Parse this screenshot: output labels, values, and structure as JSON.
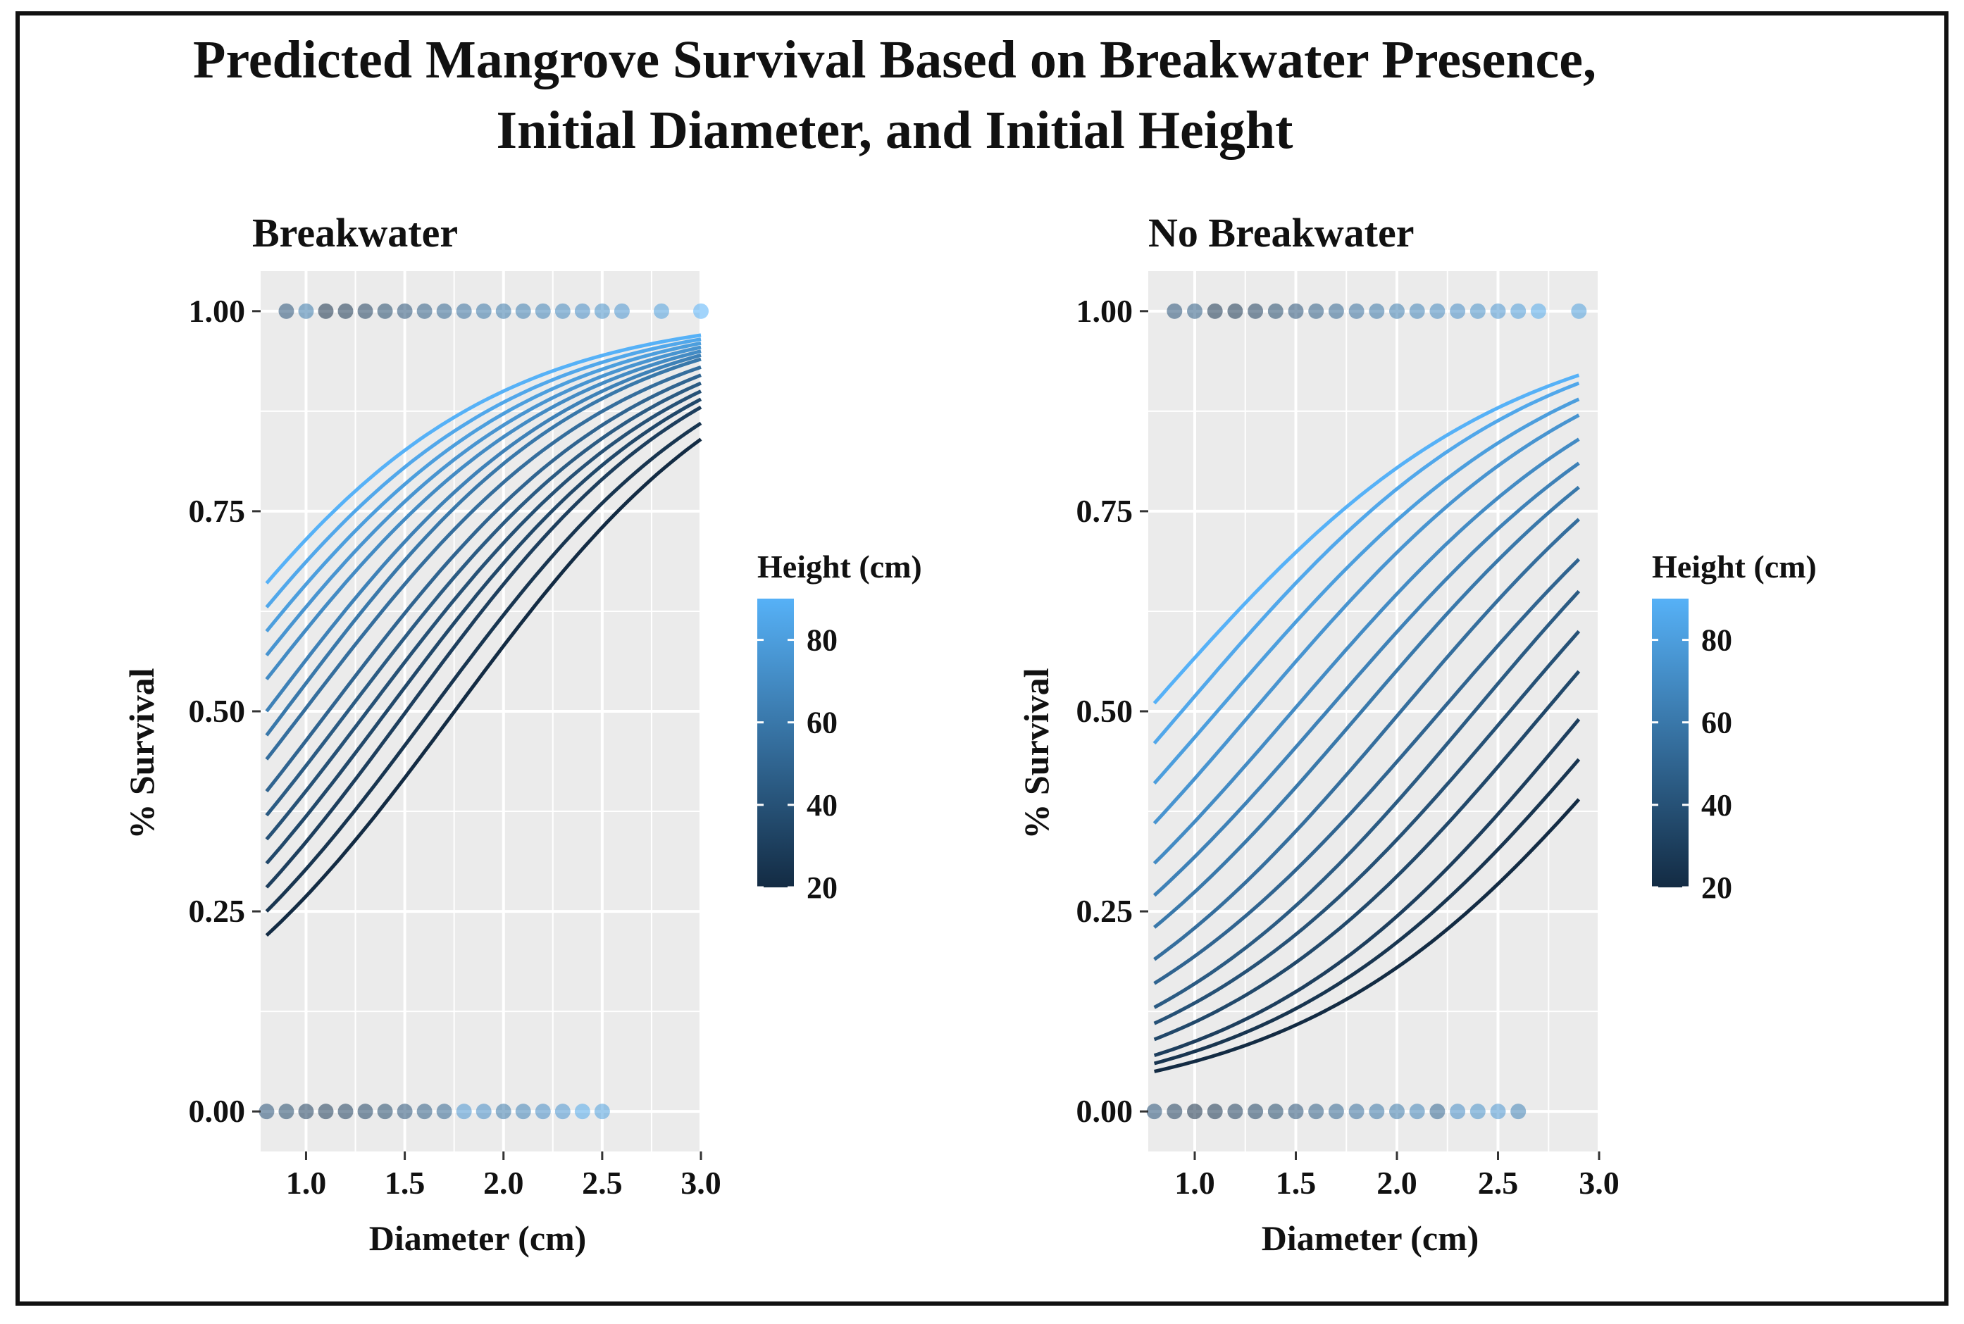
{
  "chart_data": {
    "title_line1": "Predicted Mangrove Survival Based on Breakwater Presence,",
    "title_line2": "Initial Diameter, and Initial Height",
    "colors": {
      "low": "#132B43",
      "high": "#56B1F7",
      "panel_bg": "#EBEBEB",
      "grid": "#ffffff"
    },
    "legend": {
      "title": "Height (cm)",
      "range": [
        20,
        90
      ],
      "ticks": [
        "80",
        "60",
        "40",
        "20"
      ]
    },
    "panels": [
      {
        "title": "Breakwater",
        "type": "line",
        "xlabel": "Diameter (cm)",
        "ylabel": "% Survival",
        "xlim": [
          0.77,
          3.0
        ],
        "ylim": [
          -0.05,
          1.05
        ],
        "xticks": [
          "1.0",
          "1.5",
          "2.0",
          "2.5",
          "3.0"
        ],
        "yticks": [
          "0.00",
          "0.25",
          "0.50",
          "0.75",
          "1.00"
        ],
        "x_range": [
          0.8,
          3.0
        ],
        "series": [
          {
            "height": 20,
            "y_start": 0.22,
            "y_end": 0.84
          },
          {
            "height": 25,
            "y_start": 0.25,
            "y_end": 0.86
          },
          {
            "height": 30,
            "y_start": 0.28,
            "y_end": 0.88
          },
          {
            "height": 35,
            "y_start": 0.31,
            "y_end": 0.89
          },
          {
            "height": 40,
            "y_start": 0.34,
            "y_end": 0.9
          },
          {
            "height": 45,
            "y_start": 0.37,
            "y_end": 0.91
          },
          {
            "height": 50,
            "y_start": 0.4,
            "y_end": 0.92
          },
          {
            "height": 55,
            "y_start": 0.44,
            "y_end": 0.93
          },
          {
            "height": 60,
            "y_start": 0.47,
            "y_end": 0.94
          },
          {
            "height": 65,
            "y_start": 0.5,
            "y_end": 0.945
          },
          {
            "height": 70,
            "y_start": 0.54,
            "y_end": 0.95
          },
          {
            "height": 75,
            "y_start": 0.57,
            "y_end": 0.955
          },
          {
            "height": 80,
            "y_start": 0.6,
            "y_end": 0.96
          },
          {
            "height": 85,
            "y_start": 0.63,
            "y_end": 0.965
          },
          {
            "height": 90,
            "y_start": 0.66,
            "y_end": 0.97
          }
        ],
        "points_top": [
          {
            "x": 0.9,
            "h": 40
          },
          {
            "x": 1.0,
            "h": 60
          },
          {
            "x": 1.1,
            "h": 22
          },
          {
            "x": 1.2,
            "h": 25
          },
          {
            "x": 1.3,
            "h": 30
          },
          {
            "x": 1.4,
            "h": 35
          },
          {
            "x": 1.5,
            "h": 40
          },
          {
            "x": 1.6,
            "h": 45
          },
          {
            "x": 1.7,
            "h": 50
          },
          {
            "x": 1.8,
            "h": 55
          },
          {
            "x": 1.9,
            "h": 58
          },
          {
            "x": 2.0,
            "h": 60
          },
          {
            "x": 2.1,
            "h": 62
          },
          {
            "x": 2.2,
            "h": 65
          },
          {
            "x": 2.3,
            "h": 68
          },
          {
            "x": 2.4,
            "h": 70
          },
          {
            "x": 2.5,
            "h": 72
          },
          {
            "x": 2.6,
            "h": 75
          },
          {
            "x": 2.8,
            "h": 80
          },
          {
            "x": 3.0,
            "h": 90
          }
        ],
        "points_bottom": [
          {
            "x": 0.8,
            "h": 40
          },
          {
            "x": 0.9,
            "h": 35
          },
          {
            "x": 1.0,
            "h": 30
          },
          {
            "x": 1.1,
            "h": 28
          },
          {
            "x": 1.2,
            "h": 30
          },
          {
            "x": 1.3,
            "h": 32
          },
          {
            "x": 1.4,
            "h": 35
          },
          {
            "x": 1.5,
            "h": 40
          },
          {
            "x": 1.6,
            "h": 45
          },
          {
            "x": 1.7,
            "h": 50
          },
          {
            "x": 1.8,
            "h": 75
          },
          {
            "x": 1.9,
            "h": 70
          },
          {
            "x": 2.0,
            "h": 60
          },
          {
            "x": 2.1,
            "h": 65
          },
          {
            "x": 2.2,
            "h": 70
          },
          {
            "x": 2.3,
            "h": 75
          },
          {
            "x": 2.4,
            "h": 85
          },
          {
            "x": 2.5,
            "h": 80
          }
        ]
      },
      {
        "title": "No Breakwater",
        "type": "line",
        "xlabel": "Diameter (cm)",
        "ylabel": "% Survival",
        "xlim": [
          0.77,
          3.0
        ],
        "ylim": [
          -0.05,
          1.05
        ],
        "xticks": [
          "1.0",
          "1.5",
          "2.0",
          "2.5",
          "3.0"
        ],
        "yticks": [
          "0.00",
          "0.25",
          "0.50",
          "0.75",
          "1.00"
        ],
        "x_range": [
          0.8,
          2.9
        ],
        "series": [
          {
            "height": 20,
            "y_start": 0.05,
            "y_end": 0.39
          },
          {
            "height": 25,
            "y_start": 0.06,
            "y_end": 0.44
          },
          {
            "height": 30,
            "y_start": 0.07,
            "y_end": 0.49
          },
          {
            "height": 35,
            "y_start": 0.09,
            "y_end": 0.55
          },
          {
            "height": 40,
            "y_start": 0.11,
            "y_end": 0.6
          },
          {
            "height": 45,
            "y_start": 0.13,
            "y_end": 0.65
          },
          {
            "height": 50,
            "y_start": 0.16,
            "y_end": 0.69
          },
          {
            "height": 55,
            "y_start": 0.19,
            "y_end": 0.74
          },
          {
            "height": 60,
            "y_start": 0.23,
            "y_end": 0.78
          },
          {
            "height": 65,
            "y_start": 0.27,
            "y_end": 0.81
          },
          {
            "height": 70,
            "y_start": 0.31,
            "y_end": 0.84
          },
          {
            "height": 75,
            "y_start": 0.36,
            "y_end": 0.87
          },
          {
            "height": 80,
            "y_start": 0.41,
            "y_end": 0.89
          },
          {
            "height": 85,
            "y_start": 0.46,
            "y_end": 0.91
          },
          {
            "height": 90,
            "y_start": 0.51,
            "y_end": 0.92
          }
        ],
        "points_top": [
          {
            "x": 0.9,
            "h": 40
          },
          {
            "x": 1.0,
            "h": 45
          },
          {
            "x": 1.1,
            "h": 25
          },
          {
            "x": 1.2,
            "h": 25
          },
          {
            "x": 1.3,
            "h": 30
          },
          {
            "x": 1.4,
            "h": 35
          },
          {
            "x": 1.5,
            "h": 40
          },
          {
            "x": 1.6,
            "h": 45
          },
          {
            "x": 1.7,
            "h": 50
          },
          {
            "x": 1.8,
            "h": 55
          },
          {
            "x": 1.9,
            "h": 58
          },
          {
            "x": 2.0,
            "h": 62
          },
          {
            "x": 2.1,
            "h": 65
          },
          {
            "x": 2.2,
            "h": 68
          },
          {
            "x": 2.3,
            "h": 70
          },
          {
            "x": 2.4,
            "h": 72
          },
          {
            "x": 2.5,
            "h": 75
          },
          {
            "x": 2.6,
            "h": 78
          },
          {
            "x": 2.7,
            "h": 85
          },
          {
            "x": 2.9,
            "h": 80
          }
        ],
        "points_bottom": [
          {
            "x": 0.8,
            "h": 40
          },
          {
            "x": 0.9,
            "h": 30
          },
          {
            "x": 1.0,
            "h": 22
          },
          {
            "x": 1.1,
            "h": 25
          },
          {
            "x": 1.2,
            "h": 30
          },
          {
            "x": 1.3,
            "h": 32
          },
          {
            "x": 1.4,
            "h": 35
          },
          {
            "x": 1.5,
            "h": 40
          },
          {
            "x": 1.6,
            "h": 45
          },
          {
            "x": 1.7,
            "h": 50
          },
          {
            "x": 1.8,
            "h": 55
          },
          {
            "x": 1.9,
            "h": 58
          },
          {
            "x": 2.0,
            "h": 60
          },
          {
            "x": 2.1,
            "h": 65
          },
          {
            "x": 2.2,
            "h": 50
          },
          {
            "x": 2.3,
            "h": 70
          },
          {
            "x": 2.4,
            "h": 72
          },
          {
            "x": 2.5,
            "h": 75
          },
          {
            "x": 2.6,
            "h": 65
          }
        ]
      }
    ]
  }
}
